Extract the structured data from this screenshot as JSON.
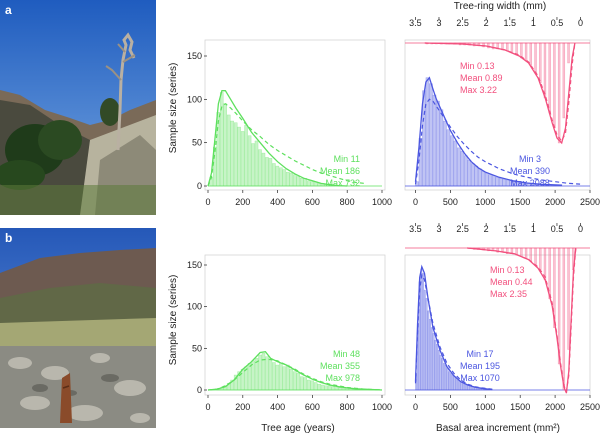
{
  "panels": [
    {
      "label": "a"
    },
    {
      "label": "b"
    }
  ],
  "shared": {
    "ylabel": "Sample size (series)",
    "xlabel_age": "Tree age (years)",
    "xlabel_bai": "Basal area increment (mm²)",
    "xlabel_trw": "Tree-ring width (mm)"
  },
  "colors": {
    "age": "#5ee05e",
    "bai": "#4b56e0",
    "trw": "#f2507e",
    "photo_a_sky": "#2f6fc9",
    "photo_b_sky": "#2c62c0"
  },
  "icons": [
    "photo-a-subalpine-pine",
    "photo-b-scree-slope"
  ],
  "chart_data": [
    {
      "id": "a-age",
      "type": "bar",
      "panel": "a",
      "xlabel": "",
      "ylabel": "Sample size (series)",
      "xlim": [
        0,
        1000
      ],
      "ylim": [
        0,
        175
      ],
      "xticks": [
        0,
        200,
        400,
        600,
        800,
        1000
      ],
      "yticks": [
        0,
        50,
        100,
        150
      ],
      "bin_width": 20,
      "x": [
        20,
        40,
        60,
        80,
        100,
        120,
        140,
        160,
        180,
        200,
        220,
        240,
        260,
        280,
        300,
        320,
        340,
        360,
        380,
        400,
        420,
        440,
        460,
        480,
        500,
        520,
        540,
        560,
        580,
        600,
        620,
        640,
        660,
        680,
        700,
        720
      ],
      "values": [
        10,
        45,
        85,
        108,
        95,
        82,
        75,
        73,
        68,
        63,
        70,
        58,
        49,
        52,
        42,
        38,
        33,
        32,
        26,
        23,
        21,
        19,
        16,
        15,
        13,
        11,
        9,
        9,
        6,
        5,
        5,
        3,
        3,
        2,
        2,
        1
      ],
      "smooth": [
        [
          0,
          0
        ],
        [
          20,
          15
        ],
        [
          40,
          55
        ],
        [
          60,
          95
        ],
        [
          80,
          110
        ],
        [
          100,
          110
        ],
        [
          130,
          100
        ],
        [
          160,
          90
        ],
        [
          200,
          78
        ],
        [
          250,
          62
        ],
        [
          300,
          50
        ],
        [
          350,
          38
        ],
        [
          400,
          28
        ],
        [
          450,
          20
        ],
        [
          500,
          14
        ],
        [
          550,
          9
        ],
        [
          600,
          6
        ],
        [
          650,
          3
        ],
        [
          700,
          1.5
        ],
        [
          750,
          0.5
        ],
        [
          800,
          0
        ]
      ],
      "fit": [
        [
          0,
          0
        ],
        [
          20,
          10
        ],
        [
          40,
          40
        ],
        [
          60,
          75
        ],
        [
          80,
          92
        ],
        [
          100,
          95
        ],
        [
          130,
          90
        ],
        [
          160,
          84
        ],
        [
          200,
          75
        ],
        [
          250,
          65
        ],
        [
          300,
          57
        ],
        [
          350,
          48
        ],
        [
          400,
          41
        ],
        [
          450,
          35
        ],
        [
          500,
          29
        ],
        [
          550,
          24
        ],
        [
          600,
          19
        ],
        [
          650,
          15
        ],
        [
          700,
          12
        ],
        [
          750,
          9
        ],
        [
          800,
          6
        ],
        [
          850,
          4
        ],
        [
          900,
          3
        ]
      ],
      "stats": [
        "Min 11",
        "Mean 186",
        "Max 732"
      ]
    },
    {
      "id": "a-bai",
      "type": "bar",
      "panel": "a",
      "xlabel": "",
      "ylabel": "",
      "xlim": [
        -150,
        2500
      ],
      "ylim": [
        0,
        175
      ],
      "xticks": [
        0,
        500,
        1000,
        1500,
        2000,
        2500
      ],
      "bin_width": 50,
      "x": [
        25,
        75,
        125,
        175,
        225,
        275,
        325,
        375,
        425,
        475,
        525,
        575,
        625,
        675,
        725,
        775,
        825,
        875,
        925,
        975,
        1025,
        1075,
        1125,
        1175,
        1225,
        1275,
        1325,
        1375,
        1425,
        1475,
        1525,
        1575,
        1625,
        1675,
        1725,
        1775,
        1825,
        1875,
        1925,
        1975,
        2025,
        2075
      ],
      "values": [
        5,
        55,
        110,
        125,
        118,
        105,
        98,
        88,
        75,
        65,
        58,
        52,
        44,
        40,
        35,
        30,
        26,
        23,
        20,
        17,
        15,
        13,
        12,
        10,
        9,
        8,
        7,
        6,
        5,
        4,
        4,
        3,
        3,
        2,
        2,
        2,
        1,
        1,
        1,
        1,
        1,
        1
      ],
      "smooth": [
        [
          0,
          5
        ],
        [
          50,
          45
        ],
        [
          100,
          95
        ],
        [
          150,
          120
        ],
        [
          200,
          125
        ],
        [
          250,
          112
        ],
        [
          300,
          100
        ],
        [
          400,
          82
        ],
        [
          500,
          64
        ],
        [
          600,
          50
        ],
        [
          700,
          38
        ],
        [
          800,
          28
        ],
        [
          900,
          21
        ],
        [
          1000,
          16
        ],
        [
          1200,
          10
        ],
        [
          1400,
          6
        ],
        [
          1600,
          3.5
        ],
        [
          1800,
          2
        ],
        [
          2100,
          1
        ]
      ],
      "fit": [
        [
          0,
          2
        ],
        [
          50,
          30
        ],
        [
          100,
          70
        ],
        [
          150,
          95
        ],
        [
          200,
          100
        ],
        [
          250,
          98
        ],
        [
          300,
          92
        ],
        [
          400,
          80
        ],
        [
          500,
          68
        ],
        [
          600,
          57
        ],
        [
          700,
          48
        ],
        [
          800,
          40
        ],
        [
          900,
          33
        ],
        [
          1000,
          28
        ],
        [
          1200,
          20
        ],
        [
          1400,
          14
        ],
        [
          1600,
          10
        ],
        [
          1800,
          7
        ],
        [
          2000,
          5
        ],
        [
          2200,
          3
        ],
        [
          2400,
          2
        ]
      ],
      "stats": [
        "Min 3",
        "Mean 390",
        "Max 2088"
      ]
    },
    {
      "id": "a-trw",
      "type": "bar",
      "panel": "a",
      "orientation": "downward",
      "xlabel": "Tree-ring width (mm)",
      "ylabel": "",
      "xlim": [
        3.72,
        -0.2
      ],
      "xticks": [
        3.5,
        3.0,
        2.5,
        2.0,
        1.5,
        1.0,
        0.5,
        0.0
      ],
      "bin_width": 0.05,
      "x": [
        3.25,
        3.15,
        3.05,
        2.95,
        2.85,
        2.75,
        2.65,
        2.55,
        2.45,
        2.35,
        2.25,
        2.15,
        2.05,
        1.95,
        1.85,
        1.75,
        1.65,
        1.55,
        1.45,
        1.35,
        1.25,
        1.15,
        1.05,
        0.95,
        0.85,
        0.75,
        0.65,
        0.55,
        0.45,
        0.35,
        0.25
      ],
      "values": [
        1,
        1,
        1,
        1,
        1,
        1,
        1,
        2,
        2,
        2,
        3,
        3,
        4,
        5,
        6,
        6,
        7,
        8,
        10,
        12,
        15,
        18,
        22,
        30,
        40,
        55,
        70,
        85,
        100,
        75,
        20
      ],
      "smooth": [
        [
          3.3,
          0
        ],
        [
          2.5,
          1
        ],
        [
          2.0,
          3
        ],
        [
          1.6,
          7
        ],
        [
          1.3,
          13
        ],
        [
          1.1,
          20
        ],
        [
          0.9,
          35
        ],
        [
          0.75,
          55
        ],
        [
          0.6,
          80
        ],
        [
          0.5,
          95
        ],
        [
          0.4,
          100
        ],
        [
          0.32,
          85
        ],
        [
          0.25,
          50
        ],
        [
          0.18,
          15
        ],
        [
          0.12,
          0
        ]
      ],
      "fit": [
        [
          3.3,
          0
        ],
        [
          2.5,
          1
        ],
        [
          2.0,
          3
        ],
        [
          1.6,
          7
        ],
        [
          1.3,
          12
        ],
        [
          1.1,
          19
        ],
        [
          0.9,
          33
        ],
        [
          0.75,
          52
        ],
        [
          0.6,
          77
        ],
        [
          0.5,
          92
        ],
        [
          0.4,
          98
        ],
        [
          0.32,
          90
        ],
        [
          0.25,
          60
        ],
        [
          0.18,
          22
        ],
        [
          0.12,
          0
        ]
      ],
      "stats": [
        "Min 0.13",
        "Mean 0.89",
        "Max 3.22"
      ]
    },
    {
      "id": "b-age",
      "type": "bar",
      "panel": "b",
      "xlabel": "Tree age (years)",
      "ylabel": "Sample size (series)",
      "xlim": [
        0,
        1000
      ],
      "ylim": [
        0,
        175
      ],
      "xticks": [
        0,
        200,
        400,
        600,
        800,
        1000
      ],
      "yticks": [
        0,
        50,
        100,
        150
      ],
      "bin_width": 20,
      "x": [
        60,
        80,
        100,
        120,
        140,
        160,
        180,
        200,
        220,
        240,
        260,
        280,
        300,
        320,
        340,
        360,
        380,
        400,
        420,
        440,
        460,
        480,
        500,
        520,
        540,
        560,
        580,
        600,
        620,
        640,
        660,
        680,
        700,
        720,
        740,
        760,
        780,
        800,
        820,
        840,
        860,
        880,
        900,
        920,
        940,
        960,
        980
      ],
      "values": [
        1,
        3,
        5,
        8,
        12,
        18,
        22,
        25,
        28,
        32,
        35,
        38,
        42,
        44,
        40,
        36,
        33,
        30,
        32,
        28,
        30,
        25,
        22,
        20,
        16,
        15,
        12,
        11,
        9,
        7,
        6,
        5,
        5,
        4,
        3,
        3,
        2,
        2,
        2,
        1,
        1,
        1,
        1,
        1,
        1,
        1,
        1
      ],
      "smooth": [
        [
          0,
          0
        ],
        [
          50,
          1
        ],
        [
          100,
          4
        ],
        [
          150,
          12
        ],
        [
          200,
          25
        ],
        [
          250,
          34
        ],
        [
          300,
          45
        ],
        [
          330,
          46
        ],
        [
          360,
          38
        ],
        [
          400,
          34
        ],
        [
          450,
          30
        ],
        [
          500,
          24
        ],
        [
          550,
          18
        ],
        [
          600,
          13
        ],
        [
          650,
          9
        ],
        [
          700,
          6
        ],
        [
          750,
          4
        ],
        [
          800,
          2.5
        ],
        [
          850,
          1.5
        ],
        [
          900,
          1
        ],
        [
          1000,
          0
        ]
      ],
      "fit": [
        [
          0,
          0
        ],
        [
          50,
          1
        ],
        [
          100,
          5
        ],
        [
          150,
          12
        ],
        [
          200,
          21
        ],
        [
          250,
          30
        ],
        [
          300,
          36
        ],
        [
          350,
          37
        ],
        [
          400,
          35
        ],
        [
          450,
          30
        ],
        [
          500,
          25
        ],
        [
          550,
          19
        ],
        [
          600,
          14
        ],
        [
          650,
          10
        ],
        [
          700,
          7
        ],
        [
          750,
          5
        ],
        [
          800,
          3
        ],
        [
          850,
          2
        ],
        [
          900,
          1
        ],
        [
          1000,
          0
        ]
      ],
      "stats": [
        "Min 48",
        "Mean 355",
        "Max 978"
      ]
    },
    {
      "id": "b-bai",
      "type": "bar",
      "panel": "b",
      "xlabel": "Basal area increment (mm²)",
      "ylabel": "",
      "xlim": [
        -150,
        2500
      ],
      "ylim": [
        0,
        175
      ],
      "xticks": [
        0,
        500,
        1000,
        1500,
        2000,
        2500
      ],
      "bin_width": 25,
      "x": [
        12,
        37,
        62,
        87,
        112,
        137,
        162,
        187,
        212,
        237,
        262,
        287,
        312,
        337,
        362,
        387,
        412,
        437,
        462,
        487,
        512,
        537,
        562,
        587,
        612,
        637,
        662,
        687,
        712,
        737,
        762,
        787,
        812,
        837,
        862,
        887,
        912,
        937,
        962,
        987,
        1012,
        1037,
        1062
      ],
      "values": [
        20,
        80,
        130,
        145,
        140,
        120,
        110,
        95,
        85,
        75,
        68,
        60,
        55,
        48,
        42,
        38,
        32,
        30,
        26,
        22,
        20,
        18,
        16,
        14,
        12,
        10,
        9,
        8,
        7,
        6,
        5,
        5,
        4,
        4,
        3,
        3,
        2,
        2,
        2,
        1,
        1,
        1,
        1
      ],
      "smooth": [
        [
          0,
          10
        ],
        [
          30,
          80
        ],
        [
          60,
          135
        ],
        [
          90,
          148
        ],
        [
          130,
          140
        ],
        [
          180,
          110
        ],
        [
          250,
          75
        ],
        [
          350,
          48
        ],
        [
          450,
          28
        ],
        [
          550,
          17
        ],
        [
          650,
          10
        ],
        [
          750,
          6
        ],
        [
          850,
          3.5
        ],
        [
          950,
          2
        ],
        [
          1100,
          0.5
        ]
      ],
      "fit": [
        [
          0,
          8
        ],
        [
          30,
          70
        ],
        [
          60,
          120
        ],
        [
          90,
          138
        ],
        [
          130,
          132
        ],
        [
          180,
          110
        ],
        [
          250,
          80
        ],
        [
          350,
          52
        ],
        [
          450,
          32
        ],
        [
          550,
          20
        ],
        [
          650,
          12
        ],
        [
          750,
          7
        ],
        [
          850,
          4
        ],
        [
          950,
          2.5
        ],
        [
          1100,
          1
        ]
      ],
      "stats": [
        "Min 17",
        "Mean 195",
        "Max 1070"
      ]
    },
    {
      "id": "b-trw",
      "type": "bar",
      "panel": "b",
      "orientation": "downward",
      "xlabel": "",
      "ylabel": "",
      "xlim": [
        3.72,
        -0.2
      ],
      "xticks": [
        3.5,
        3.0,
        2.5,
        2.0,
        1.5,
        1.0,
        0.5,
        0.0
      ],
      "bin_width": 0.05,
      "x": [
        2.25,
        2.15,
        2.05,
        1.95,
        1.85,
        1.75,
        1.65,
        1.55,
        1.45,
        1.35,
        1.25,
        1.15,
        1.05,
        0.95,
        0.85,
        0.75,
        0.65,
        0.55,
        0.45,
        0.35,
        0.25,
        0.15
      ],
      "values": [
        1,
        1,
        1,
        2,
        2,
        3,
        3,
        4,
        4,
        5,
        6,
        7,
        9,
        12,
        15,
        22,
        35,
        55,
        80,
        98,
        70,
        15
      ],
      "smooth": [
        [
          2.4,
          0
        ],
        [
          1.8,
          2
        ],
        [
          1.4,
          4
        ],
        [
          1.1,
          8
        ],
        [
          0.9,
          14
        ],
        [
          0.75,
          22
        ],
        [
          0.6,
          40
        ],
        [
          0.5,
          62
        ],
        [
          0.42,
          82
        ],
        [
          0.35,
          96
        ],
        [
          0.3,
          100
        ],
        [
          0.25,
          85
        ],
        [
          0.2,
          50
        ],
        [
          0.15,
          15
        ],
        [
          0.1,
          0
        ]
      ],
      "fit": [
        [
          2.4,
          0
        ],
        [
          1.8,
          2
        ],
        [
          1.4,
          4
        ],
        [
          1.1,
          8
        ],
        [
          0.9,
          13
        ],
        [
          0.75,
          20
        ],
        [
          0.6,
          38
        ],
        [
          0.5,
          60
        ],
        [
          0.42,
          80
        ],
        [
          0.35,
          95
        ],
        [
          0.3,
          99
        ],
        [
          0.25,
          88
        ],
        [
          0.2,
          55
        ],
        [
          0.15,
          20
        ],
        [
          0.1,
          0
        ]
      ],
      "stats": [
        "Min 0.13",
        "Mean 0.44",
        "Max 2.35"
      ]
    }
  ]
}
